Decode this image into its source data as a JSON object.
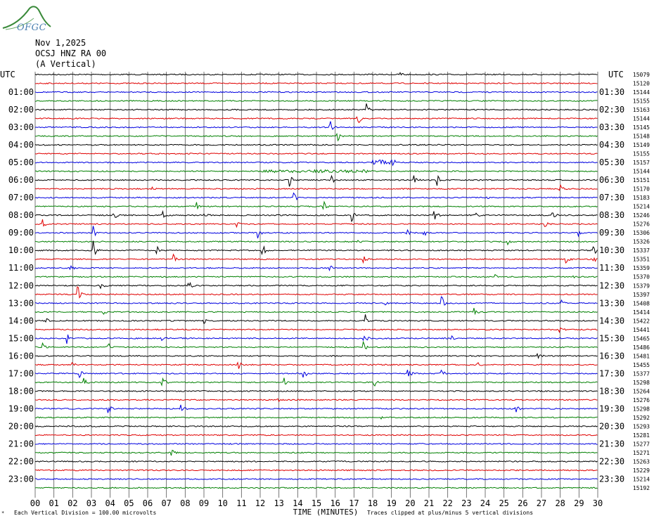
{
  "logo": {
    "text": "OFGC",
    "swoosh_color": "#3a8a3a",
    "text_color": "#4a7fb0"
  },
  "header": {
    "date": "Nov 1,2025",
    "station": "OCSJ HNZ RA 00",
    "component": "(A Vertical)"
  },
  "footer": {
    "scale_note": "Each Vertical Division =  100.00 microvolts",
    "clip_note": "Traces clipped at plus/minus 5 vertical divisions",
    "corner_mark": "*"
  },
  "chart_data": {
    "type": "line",
    "title": "",
    "xlabel": "TIME (MINUTES)",
    "left_axis_title": "UTC",
    "right_axis_title": "UTC",
    "xlim": [
      0,
      30
    ],
    "x_ticks": [
      "00",
      "01",
      "02",
      "03",
      "04",
      "05",
      "06",
      "07",
      "08",
      "09",
      "10",
      "11",
      "12",
      "13",
      "14",
      "15",
      "16",
      "17",
      "18",
      "19",
      "20",
      "21",
      "22",
      "23",
      "24",
      "25",
      "26",
      "27",
      "28",
      "29",
      "30"
    ],
    "grid": true,
    "trace_colors": [
      "#000000",
      "#e00000",
      "#0000e0",
      "#008000"
    ],
    "left_labels": [
      "01:00",
      "02:00",
      "03:00",
      "04:00",
      "05:00",
      "06:00",
      "07:00",
      "08:00",
      "09:00",
      "10:00",
      "11:00",
      "12:00",
      "13:00",
      "14:00",
      "15:00",
      "16:00",
      "17:00",
      "18:00",
      "19:00",
      "20:00",
      "21:00",
      "22:00",
      "23:00"
    ],
    "right_labels": [
      "01:30",
      "02:30",
      "03:30",
      "04:30",
      "05:30",
      "06:30",
      "07:30",
      "08:30",
      "09:30",
      "10:30",
      "11:30",
      "12:30",
      "13:30",
      "14:30",
      "15:30",
      "16:30",
      "17:30",
      "18:30",
      "19:30",
      "20:30",
      "21:30",
      "22:30",
      "23:30"
    ],
    "right_numbers": [
      "15079",
      "15120",
      "15144",
      "15155",
      "15163",
      "15144",
      "15145",
      "15148",
      "15149",
      "15155",
      "15157",
      "15144",
      "15151",
      "15170",
      "15183",
      "15214",
      "15246",
      "15276",
      "15306",
      "15326",
      "15337",
      "15351",
      "15359",
      "15370",
      "15379",
      "15397",
      "15408",
      "15414",
      "15422",
      "15441",
      "15465",
      "15486",
      "15481",
      "15455",
      "15377",
      "15298",
      "15264",
      "15276",
      "15298",
      "15292",
      "15293",
      "15281",
      "15277",
      "15271",
      "15263",
      "15229",
      "15214",
      "15192"
    ],
    "events": [
      {
        "trace": 0,
        "minute": 19.5,
        "amp": 4
      },
      {
        "trace": 5,
        "minute": 17.2,
        "amp": 12
      },
      {
        "trace": 4,
        "minute": 17.7,
        "amp": 8
      },
      {
        "trace": 6,
        "minute": 15.7,
        "amp": 14
      },
      {
        "trace": 7,
        "minute": 16.1,
        "amp": 10
      },
      {
        "trace": 10,
        "minute": 18.0,
        "amp": 4,
        "duration": 1.2
      },
      {
        "trace": 11,
        "minute": 12.0,
        "amp": 2,
        "duration": 6.0
      },
      {
        "trace": 12,
        "minute": 13.6,
        "amp": 10
      },
      {
        "trace": 12,
        "minute": 15.8,
        "amp": 7
      },
      {
        "trace": 12,
        "minute": 20.2,
        "amp": 6
      },
      {
        "trace": 12,
        "minute": 21.4,
        "amp": 12
      },
      {
        "trace": 13,
        "minute": 28.0,
        "amp": 8
      },
      {
        "trace": 13,
        "minute": 6.2,
        "amp": 3
      },
      {
        "trace": 14,
        "minute": 13.8,
        "amp": 9
      },
      {
        "trace": 14,
        "minute": 24.0,
        "amp": 4
      },
      {
        "trace": 15,
        "minute": 8.6,
        "amp": 7
      },
      {
        "trace": 15,
        "minute": 15.4,
        "amp": 7
      },
      {
        "trace": 16,
        "minute": 4.2,
        "amp": 8
      },
      {
        "trace": 16,
        "minute": 6.8,
        "amp": 5
      },
      {
        "trace": 16,
        "minute": 9.0,
        "amp": 6
      },
      {
        "trace": 16,
        "minute": 16.9,
        "amp": 8
      },
      {
        "trace": 16,
        "minute": 21.3,
        "amp": 10
      },
      {
        "trace": 16,
        "minute": 23.4,
        "amp": 7
      },
      {
        "trace": 16,
        "minute": 27.6,
        "amp": 6
      },
      {
        "trace": 17,
        "minute": 0.4,
        "amp": 6
      },
      {
        "trace": 17,
        "minute": 10.7,
        "amp": 5
      },
      {
        "trace": 17,
        "minute": 27.2,
        "amp": 5
      },
      {
        "trace": 18,
        "minute": 3.1,
        "amp": 10
      },
      {
        "trace": 18,
        "minute": 11.9,
        "amp": 8
      },
      {
        "trace": 18,
        "minute": 19.8,
        "amp": 6
      },
      {
        "trace": 18,
        "minute": 20.7,
        "amp": 8
      },
      {
        "trace": 18,
        "minute": 29.0,
        "amp": 4
      },
      {
        "trace": 19,
        "minute": 5.8,
        "amp": 5
      },
      {
        "trace": 19,
        "minute": 17.2,
        "amp": 6
      },
      {
        "trace": 19,
        "minute": 25.2,
        "amp": 4
      },
      {
        "trace": 20,
        "minute": 3.1,
        "amp": 13
      },
      {
        "trace": 20,
        "minute": 6.5,
        "amp": 6
      },
      {
        "trace": 20,
        "minute": 12.1,
        "amp": 14
      },
      {
        "trace": 20,
        "minute": 29.8,
        "amp": 9
      },
      {
        "trace": 21,
        "minute": 7.4,
        "amp": 8
      },
      {
        "trace": 21,
        "minute": 17.5,
        "amp": 7
      },
      {
        "trace": 21,
        "minute": 28.3,
        "amp": 8
      },
      {
        "trace": 21,
        "minute": 29.7,
        "amp": 10
      },
      {
        "trace": 22,
        "minute": 1.9,
        "amp": 4
      },
      {
        "trace": 22,
        "minute": 15.7,
        "amp": 7
      },
      {
        "trace": 23,
        "minute": 24.5,
        "amp": 4
      },
      {
        "trace": 23,
        "minute": 28.7,
        "amp": 5
      },
      {
        "trace": 24,
        "minute": 3.5,
        "amp": 9
      },
      {
        "trace": 24,
        "minute": 8.2,
        "amp": 7
      },
      {
        "trace": 25,
        "minute": 2.3,
        "amp": 12
      },
      {
        "trace": 26,
        "minute": 21.7,
        "amp": 10
      },
      {
        "trace": 26,
        "minute": 18.6,
        "amp": 4
      },
      {
        "trace": 26,
        "minute": 28.1,
        "amp": 4
      },
      {
        "trace": 27,
        "minute": 3.6,
        "amp": 5
      },
      {
        "trace": 27,
        "minute": 23.4,
        "amp": 8
      },
      {
        "trace": 28,
        "minute": 0.6,
        "amp": 8
      },
      {
        "trace": 28,
        "minute": 9.0,
        "amp": 5
      },
      {
        "trace": 28,
        "minute": 17.6,
        "amp": 11
      },
      {
        "trace": 29,
        "minute": 28.0,
        "amp": 3
      },
      {
        "trace": 30,
        "minute": 1.7,
        "amp": 7
      },
      {
        "trace": 30,
        "minute": 6.7,
        "amp": 6
      },
      {
        "trace": 30,
        "minute": 17.5,
        "amp": 11
      },
      {
        "trace": 30,
        "minute": 22.2,
        "amp": 4
      },
      {
        "trace": 31,
        "minute": 0.4,
        "amp": 6
      },
      {
        "trace": 31,
        "minute": 3.9,
        "amp": 6
      },
      {
        "trace": 31,
        "minute": 17.5,
        "amp": 7
      },
      {
        "trace": 32,
        "minute": 26.8,
        "amp": 5
      },
      {
        "trace": 33,
        "minute": 10.8,
        "amp": 9
      },
      {
        "trace": 33,
        "minute": 2.0,
        "amp": 3
      },
      {
        "trace": 33,
        "minute": 23.6,
        "amp": 3
      },
      {
        "trace": 34,
        "minute": 2.4,
        "amp": 6
      },
      {
        "trace": 34,
        "minute": 14.3,
        "amp": 9
      },
      {
        "trace": 34,
        "minute": 19.9,
        "amp": 7
      },
      {
        "trace": 34,
        "minute": 21.6,
        "amp": 14
      },
      {
        "trace": 35,
        "minute": 2.6,
        "amp": 6
      },
      {
        "trace": 35,
        "minute": 6.8,
        "amp": 9
      },
      {
        "trace": 35,
        "minute": 13.3,
        "amp": 7
      },
      {
        "trace": 35,
        "minute": 18.1,
        "amp": 5
      },
      {
        "trace": 37,
        "minute": 12.9,
        "amp": 4
      },
      {
        "trace": 38,
        "minute": 3.9,
        "amp": 7
      },
      {
        "trace": 38,
        "minute": 7.8,
        "amp": 8
      },
      {
        "trace": 38,
        "minute": 25.6,
        "amp": 8
      },
      {
        "trace": 39,
        "minute": 18.4,
        "amp": 2
      },
      {
        "trace": 43,
        "minute": 7.3,
        "amp": 4
      }
    ]
  }
}
